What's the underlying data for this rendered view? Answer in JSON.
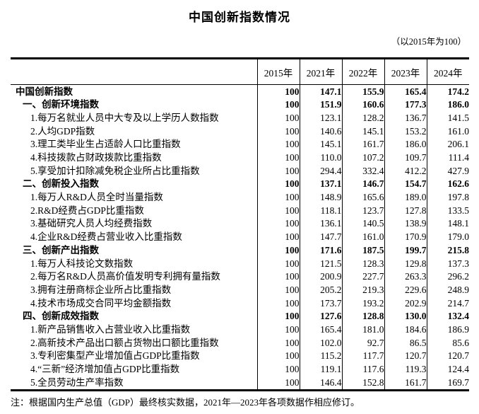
{
  "page": {
    "title": "中国创新指数情况",
    "subtitle": "（以2015年为100）",
    "note": "注：根据国内生产总值（GDP）最终核实数据，2021年—2023年各项数据作相应修订。"
  },
  "table": {
    "years": [
      "2015年",
      "2021年",
      "2022年",
      "2023年",
      "2024年"
    ],
    "rows": [
      {
        "label": "中国创新指数",
        "level": 0,
        "bold": true,
        "values": [
          "100",
          "147.1",
          "155.9",
          "165.4",
          "174.2"
        ]
      },
      {
        "label": "一、创新环境指数",
        "level": 1,
        "bold": true,
        "values": [
          "100",
          "151.9",
          "160.6",
          "177.3",
          "186.0"
        ]
      },
      {
        "label": "1.每万名就业人员中大专及以上学历人数指数",
        "level": 2,
        "bold": false,
        "values": [
          "100",
          "123.1",
          "128.2",
          "136.7",
          "141.5"
        ]
      },
      {
        "label": "2.人均GDP指数",
        "level": 2,
        "bold": false,
        "values": [
          "100",
          "140.6",
          "145.1",
          "153.2",
          "161.0"
        ]
      },
      {
        "label": "3.理工类毕业生占适龄人口比重指数",
        "level": 2,
        "bold": false,
        "values": [
          "100",
          "145.1",
          "161.7",
          "186.0",
          "206.1"
        ]
      },
      {
        "label": "4.科技拨款占财政拨款比重指数",
        "level": 2,
        "bold": false,
        "values": [
          "100",
          "110.0",
          "107.2",
          "109.7",
          "111.4"
        ]
      },
      {
        "label": "5.享受加计扣除减免税企业所占比重指数",
        "level": 2,
        "bold": false,
        "values": [
          "100",
          "294.4",
          "332.4",
          "412.2",
          "427.9"
        ]
      },
      {
        "label": "二、创新投入指数",
        "level": 1,
        "bold": true,
        "values": [
          "100",
          "137.1",
          "146.7",
          "154.7",
          "162.6"
        ]
      },
      {
        "label": "1.每万人R&D人员全时当量指数",
        "level": 2,
        "bold": false,
        "values": [
          "100",
          "148.9",
          "165.6",
          "189.0",
          "197.8"
        ]
      },
      {
        "label": "2.R&D经费占GDP比重指数",
        "level": 2,
        "bold": false,
        "values": [
          "100",
          "118.1",
          "123.7",
          "127.8",
          "133.5"
        ]
      },
      {
        "label": "3.基础研究人员人均经费指数",
        "level": 2,
        "bold": false,
        "values": [
          "100",
          "136.1",
          "140.5",
          "138.9",
          "148.1"
        ]
      },
      {
        "label": "4.企业R&D经费占营业收入比重指数",
        "level": 2,
        "bold": false,
        "values": [
          "100",
          "147.7",
          "161.0",
          "170.9",
          "179.0"
        ]
      },
      {
        "label": "三、创新产出指数",
        "level": 1,
        "bold": true,
        "values": [
          "100",
          "171.6",
          "187.5",
          "199.7",
          "215.8"
        ]
      },
      {
        "label": "1.每万人科技论文数指数",
        "level": 2,
        "bold": false,
        "values": [
          "100",
          "121.5",
          "128.3",
          "129.8",
          "137.3"
        ]
      },
      {
        "label": "2.每万名R&D人员高价值发明专利拥有量指数",
        "level": 2,
        "bold": false,
        "values": [
          "100",
          "200.9",
          "227.7",
          "263.3",
          "296.2"
        ]
      },
      {
        "label": "3.拥有注册商标企业所占比重指数",
        "level": 2,
        "bold": false,
        "values": [
          "100",
          "205.2",
          "219.3",
          "229.6",
          "248.9"
        ]
      },
      {
        "label": "4.技术市场成交合同平均金额指数",
        "level": 2,
        "bold": false,
        "values": [
          "100",
          "173.7",
          "193.2",
          "202.9",
          "214.7"
        ]
      },
      {
        "label": "四、创新成效指数",
        "level": 1,
        "bold": true,
        "values": [
          "100",
          "127.6",
          "128.8",
          "130.0",
          "132.4"
        ]
      },
      {
        "label": "1.新产品销售收入占营业收入比重指数",
        "level": 2,
        "bold": false,
        "values": [
          "100",
          "165.4",
          "181.0",
          "184.6",
          "186.9"
        ]
      },
      {
        "label": "2.高新技术产品出口额占货物出口额比重指数",
        "level": 2,
        "bold": false,
        "values": [
          "100",
          "102.0",
          "92.7",
          "86.5",
          "85.6"
        ]
      },
      {
        "label": "3.专利密集型产业增加值占GDP比重指数",
        "level": 2,
        "bold": false,
        "values": [
          "100",
          "115.2",
          "117.7",
          "120.7",
          "120.7"
        ]
      },
      {
        "label": "4.“三新”经济增加值占GDP比重指数",
        "level": 2,
        "bold": false,
        "values": [
          "100",
          "119.1",
          "117.6",
          "119.3",
          "124.4"
        ]
      },
      {
        "label": "5.全员劳动生产率指数",
        "level": 2,
        "bold": false,
        "values": [
          "100",
          "146.4",
          "152.8",
          "161.7",
          "169.7"
        ]
      }
    ]
  }
}
